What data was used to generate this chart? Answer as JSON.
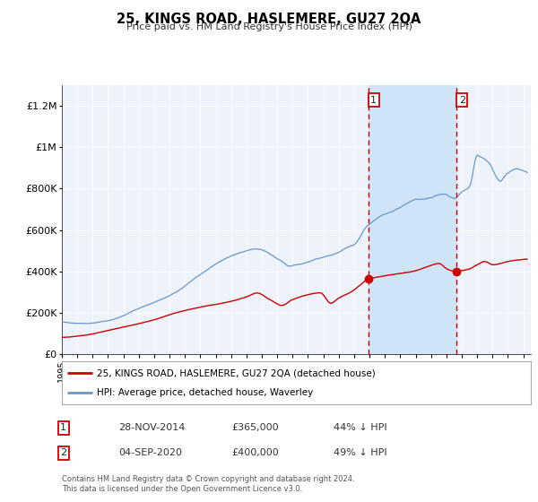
{
  "title": "25, KINGS ROAD, HASLEMERE, GU27 2QA",
  "subtitle": "Price paid vs. HM Land Registry's House Price Index (HPI)",
  "bg_color": "#ffffff",
  "plot_bg_color": "#edf2fb",
  "grid_color": "#ffffff",
  "sale1_date": 2014.92,
  "sale1_price": 365000,
  "sale1_label": "28-NOV-2014",
  "sale1_pct": "44% ↓ HPI",
  "sale2_date": 2020.67,
  "sale2_price": 400000,
  "sale2_label": "04-SEP-2020",
  "sale2_pct": "49% ↓ HPI",
  "legend_label_red": "25, KINGS ROAD, HASLEMERE, GU27 2QA (detached house)",
  "legend_label_blue": "HPI: Average price, detached house, Waverley",
  "footnote1": "Contains HM Land Registry data © Crown copyright and database right 2024.",
  "footnote2": "This data is licensed under the Open Government Licence v3.0.",
  "ylim_max": 1300000,
  "xmin": 1995.0,
  "xmax": 2025.5,
  "red_color": "#cc0000",
  "blue_color": "#6699cc",
  "shade_color": "#d0e4f7",
  "vline_color": "#cc0000"
}
